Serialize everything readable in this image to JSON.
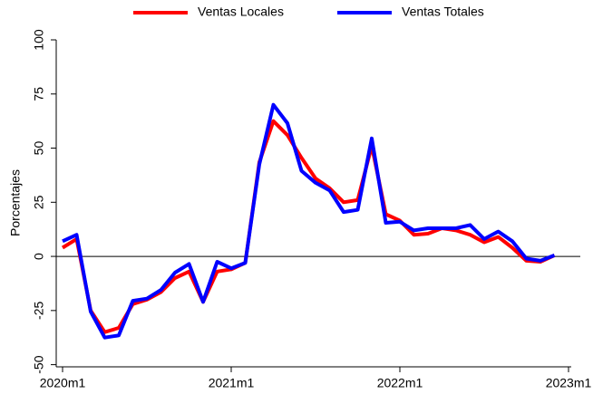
{
  "chart_data": {
    "type": "line",
    "ylabel": "Porcentajes",
    "x": [
      "2020m1",
      "2020m2",
      "2020m3",
      "2020m4",
      "2020m5",
      "2020m6",
      "2020m7",
      "2020m8",
      "2020m9",
      "2020m10",
      "2020m11",
      "2020m12",
      "2021m1",
      "2021m2",
      "2021m3",
      "2021m4",
      "2021m5",
      "2021m6",
      "2021m7",
      "2021m8",
      "2021m9",
      "2021m10",
      "2021m11",
      "2021m12",
      "2022m1",
      "2022m2",
      "2022m3",
      "2022m4",
      "2022m5",
      "2022m6",
      "2022m7",
      "2022m8",
      "2022m9",
      "2022m10",
      "2022m11",
      "2022m12"
    ],
    "series": [
      {
        "name": "Ventas Locales",
        "color": "#ff0000",
        "values": [
          4,
          8,
          -25,
          -35,
          -33,
          -22,
          -20,
          -16.5,
          -10,
          -7,
          -21,
          -7,
          -6,
          -3,
          43.5,
          62.5,
          56,
          45.5,
          36,
          31.5,
          25,
          26,
          51,
          19.5,
          16.5,
          10,
          10.5,
          13,
          12,
          10,
          6.5,
          9,
          4,
          -2,
          -2.5,
          0.5
        ]
      },
      {
        "name": "Ventas Totales",
        "color": "#0000ff",
        "values": [
          7,
          10,
          -25.5,
          -37.5,
          -36.5,
          -20.5,
          -19.5,
          -15.5,
          -7.5,
          -3.5,
          -21,
          -2.5,
          -5.5,
          -3,
          42.5,
          70,
          61.5,
          39.5,
          34,
          30.5,
          20.5,
          21.5,
          54.5,
          15.5,
          16,
          12,
          13,
          13,
          13,
          14.5,
          8,
          11.5,
          7,
          -1,
          -2,
          0.5
        ]
      }
    ],
    "xlim": [
      "2020m1",
      "2023m1"
    ],
    "xticks": [
      "2020m1",
      "2021m1",
      "2022m1",
      "2023m1"
    ],
    "ylim": [
      -51,
      100
    ],
    "yticks": [
      -50,
      -25,
      0,
      25,
      50,
      75,
      100
    ],
    "hlines": [
      0
    ],
    "legend": "top"
  }
}
